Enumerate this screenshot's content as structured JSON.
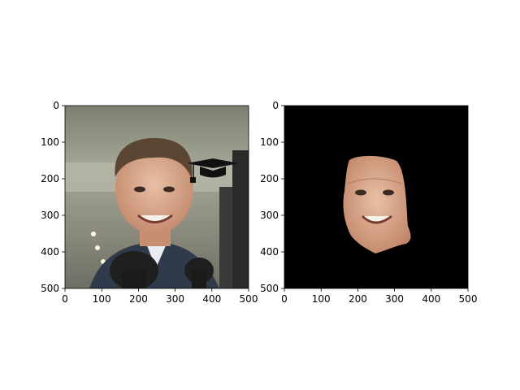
{
  "chart_data": [
    {
      "type": "image",
      "xlim": [
        0,
        500
      ],
      "ylim": [
        500,
        0
      ],
      "xticks": [
        "0",
        "100",
        "200",
        "300",
        "400",
        "500"
      ],
      "yticks": [
        "0",
        "100",
        "200",
        "300",
        "400",
        "500"
      ],
      "grid": false,
      "image_content": "photo of a smiling man with microphones, graduation cap drawn near top-right"
    },
    {
      "type": "image",
      "xlim": [
        0,
        500
      ],
      "ylim": [
        500,
        0
      ],
      "xticks": [
        "0",
        "100",
        "200",
        "300",
        "400",
        "500"
      ],
      "yticks": [
        "0",
        "100",
        "200",
        "300",
        "400",
        "500"
      ],
      "grid": false,
      "image_content": "segmented face on black background"
    }
  ],
  "colors": {
    "background": "#ffffff",
    "axis": "#000000",
    "mask_background": "#000000",
    "skin": "#d9a98f",
    "hair": "#5a4632",
    "suit": "#2f3a4a",
    "photo_wall": "#8c8f7e"
  }
}
